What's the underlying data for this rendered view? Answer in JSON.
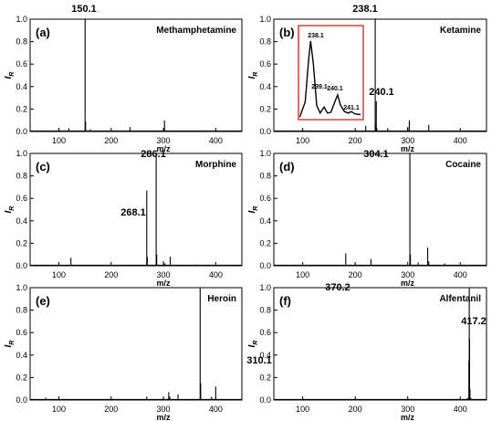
{
  "chart_data": [
    {
      "type": "spectrum",
      "panel_label": "(a)",
      "compound": "Methamphetamine",
      "xlabel": "m/z",
      "ylabel": "I",
      "ylabel_sub": "R",
      "xlim": [
        45,
        450
      ],
      "ylim": [
        0,
        1.0
      ],
      "xticks": [
        100,
        200,
        300,
        400
      ],
      "yticks": [
        "0.0",
        "0.2",
        "0.4",
        "0.6",
        "0.8",
        "1.0"
      ],
      "annotations": [
        {
          "x": 150.1,
          "y": 1.0,
          "text": "150.1"
        }
      ],
      "peaks": [
        [
          119,
          0.03
        ],
        [
          150.1,
          1.0
        ],
        [
          151.1,
          0.09
        ],
        [
          160,
          0.02
        ],
        [
          236,
          0.04
        ],
        [
          300,
          0.02
        ],
        [
          302,
          0.1
        ],
        [
          380,
          0.01
        ]
      ]
    },
    {
      "type": "spectrum",
      "panel_label": "(b)",
      "compound": "Ketamine",
      "xlabel": "m/z",
      "ylabel": "I",
      "ylabel_sub": "R",
      "xlim": [
        45,
        450
      ],
      "ylim": [
        0,
        1.0
      ],
      "xticks": [
        100,
        200,
        300,
        400
      ],
      "yticks": [
        "0.0",
        "0.2",
        "0.4",
        "0.6",
        "0.8",
        "1.0"
      ],
      "annotations": [
        {
          "x": 238.1,
          "y": 1.0,
          "text": "238.1"
        },
        {
          "x": 240.1,
          "y": 0.27,
          "text": "240.1"
        }
      ],
      "peaks": [
        [
          220,
          0.05
        ],
        [
          238.1,
          1.0
        ],
        [
          239.1,
          0.08
        ],
        [
          240.1,
          0.27
        ],
        [
          241.1,
          0.03
        ],
        [
          262,
          0.03
        ],
        [
          300,
          0.04
        ],
        [
          303,
          0.1
        ],
        [
          340,
          0.06
        ],
        [
          400,
          0.01
        ]
      ],
      "inset": {
        "labels": [
          "238.1",
          "239.1",
          "240.1",
          "241.1"
        ],
        "points": [
          [
            237.3,
            0.0
          ],
          [
            237.7,
            0.2
          ],
          [
            237.95,
            0.75
          ],
          [
            238.1,
            1.0
          ],
          [
            238.3,
            0.7
          ],
          [
            238.55,
            0.15
          ],
          [
            238.8,
            0.05
          ],
          [
            239.1,
            0.13
          ],
          [
            239.35,
            0.05
          ],
          [
            239.6,
            0.06
          ],
          [
            239.9,
            0.2
          ],
          [
            240.1,
            0.29
          ],
          [
            240.3,
            0.16
          ],
          [
            240.6,
            0.07
          ],
          [
            240.9,
            0.05
          ],
          [
            241.1,
            0.07
          ],
          [
            241.4,
            0.04
          ],
          [
            241.8,
            0.03
          ]
        ]
      }
    },
    {
      "type": "spectrum",
      "panel_label": "(c)",
      "compound": "Morphine",
      "xlabel": "m/z",
      "ylabel": "I",
      "ylabel_sub": "R",
      "xlim": [
        45,
        450
      ],
      "ylim": [
        0,
        1.0
      ],
      "xticks": [
        100,
        200,
        300,
        400
      ],
      "yticks": [
        "0.0",
        "0.2",
        "0.4",
        "0.6",
        "0.8",
        "1.0"
      ],
      "annotations": [
        {
          "x": 268.1,
          "y": 0.67,
          "text": "268.1"
        },
        {
          "x": 286.1,
          "y": 1.0,
          "text": "286.1"
        }
      ],
      "peaks": [
        [
          123,
          0.07
        ],
        [
          268.1,
          0.67
        ],
        [
          269.1,
          0.08
        ],
        [
          286.1,
          1.0
        ],
        [
          287.1,
          0.1
        ],
        [
          300,
          0.04
        ],
        [
          303,
          0.02
        ],
        [
          313,
          0.08
        ],
        [
          360,
          0.01
        ]
      ]
    },
    {
      "type": "spectrum",
      "panel_label": "(d)",
      "compound": "Cocaine",
      "xlabel": "m/z",
      "ylabel": "I",
      "ylabel_sub": "R",
      "xlim": [
        45,
        450
      ],
      "ylim": [
        0,
        1.0
      ],
      "xticks": [
        100,
        200,
        300,
        400
      ],
      "yticks": [
        "0.0",
        "0.2",
        "0.4",
        "0.6",
        "0.8",
        "1.0"
      ],
      "annotations": [
        {
          "x": 304.1,
          "y": 1.0,
          "text": "304.1"
        }
      ],
      "peaks": [
        [
          182,
          0.11
        ],
        [
          200,
          0.02
        ],
        [
          230,
          0.06
        ],
        [
          304.1,
          1.0
        ],
        [
          305.1,
          0.1
        ],
        [
          320,
          0.03
        ],
        [
          338,
          0.16
        ],
        [
          340,
          0.04
        ],
        [
          370,
          0.02
        ]
      ]
    },
    {
      "type": "spectrum",
      "panel_label": "(e)",
      "compound": "Heroin",
      "xlabel": "m/z",
      "ylabel": "I",
      "ylabel_sub": "R",
      "xlim": [
        45,
        450
      ],
      "ylim": [
        0,
        1.0
      ],
      "xticks": [
        100,
        200,
        300,
        400
      ],
      "yticks": [
        "0.0",
        "0.2",
        "0.4",
        "0.6",
        "0.8",
        "1.0"
      ],
      "annotations": [
        {
          "x": 310.1,
          "y": 0.07,
          "text": "310.1"
        },
        {
          "x": 370.2,
          "y": 1.0,
          "text": "370.2"
        }
      ],
      "peaks": [
        [
          75,
          0.02
        ],
        [
          268,
          0.03
        ],
        [
          310.1,
          0.07
        ],
        [
          312,
          0.03
        ],
        [
          328,
          0.05
        ],
        [
          370.2,
          1.0
        ],
        [
          371.2,
          0.15
        ],
        [
          392,
          0.03
        ],
        [
          400,
          0.12
        ]
      ]
    },
    {
      "type": "spectrum",
      "panel_label": "(f)",
      "compound": "Alfentanil",
      "xlabel": "m/z",
      "ylabel": "I",
      "ylabel_sub": "R",
      "xlim": [
        45,
        450
      ],
      "ylim": [
        0,
        1.0
      ],
      "xticks": [
        100,
        200,
        300,
        400
      ],
      "yticks": [
        "0.0",
        "0.2",
        "0.4",
        "0.6",
        "0.8",
        "1.0"
      ],
      "annotations": [
        {
          "x": 417.2,
          "y": 1.0,
          "text": "417.2"
        }
      ],
      "peaks": [
        [
          414,
          0.02
        ],
        [
          416.5,
          0.35
        ],
        [
          417.2,
          1.0
        ],
        [
          417.8,
          0.55
        ],
        [
          418.5,
          0.1
        ],
        [
          420,
          0.02
        ]
      ]
    }
  ]
}
